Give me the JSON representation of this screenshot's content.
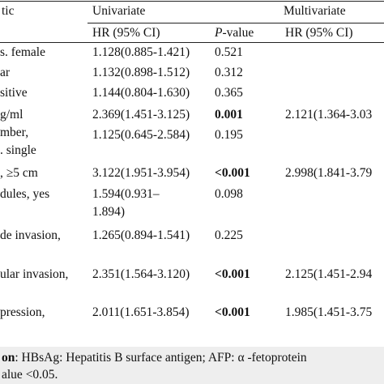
{
  "headers": {
    "characteristic": "tic",
    "univariate": "Univariate",
    "multivariate": "Multivariate",
    "hr_ci_1": "HR (95% CI)",
    "p_italic": "P",
    "p_suffix": "-value",
    "hr_ci_2": "HR (95% CI)"
  },
  "rows": [
    {
      "label": "s. female",
      "hr": "1.128(0.885-1.421)",
      "p": "0.521",
      "multi": ""
    },
    {
      "label": "ar",
      "hr": "1.132(0.898-1.512)",
      "p": "0.312",
      "multi": ""
    },
    {
      "label": "sitive",
      "hr": "1.144(0.804-1.630)",
      "p": "0.365",
      "multi": ""
    },
    {
      "label": "g/ml",
      "hr": "2.369(1.451-3.125)",
      "p": "0.001",
      "multi": "2.121(1.364-3.03"
    },
    {
      "label_1": "mber,",
      "label_2": ". single",
      "hr": "1.125(0.645-2.584)",
      "p": "0.195",
      "multi": ""
    },
    {
      "label": ", ≥5 cm",
      "hr": "3.122(1.951-3.954)",
      "p": "<0.001",
      "multi": "2.998(1.841-3.79"
    },
    {
      "label": "dules, yes",
      "hr_1": "1.594(0.931–",
      "hr_2": "1.894)",
      "p": "0.098",
      "multi": ""
    },
    {
      "label": "de invasion,",
      "hr": "1.265(0.894-1.541)",
      "p": "0.225",
      "multi": ""
    },
    {
      "label": "ular invasion,",
      "hr": "2.351(1.564-3.120)",
      "p": "<0.001",
      "multi": "2.125(1.451-2.94"
    },
    {
      "label": "pression,",
      "hr": "2.011(1.651-3.854)",
      "p": "<0.001",
      "multi": "1.985(1.451-3.75"
    }
  ],
  "footnote": {
    "line1_bold": "on",
    "line1_text": ": HBsAg: Hepatitis B surface antigen; AFP: α -fetoprotein",
    "line2_text": "alue <0.05."
  }
}
